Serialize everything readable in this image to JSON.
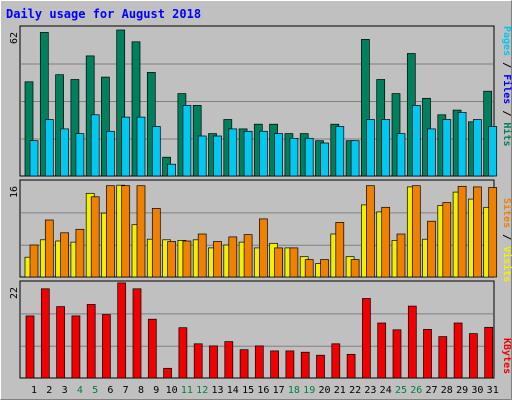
{
  "chart_data": [
    {
      "type": "bar",
      "title": "Daily usage for August 2018",
      "panel": "top",
      "ymax_label": "62",
      "ylim": [
        0,
        62
      ],
      "categories": [
        "1",
        "2",
        "3",
        "4",
        "5",
        "6",
        "7",
        "8",
        "9",
        "10",
        "11",
        "12",
        "13",
        "14",
        "15",
        "16",
        "17",
        "18",
        "19",
        "20",
        "21",
        "22",
        "23",
        "24",
        "25",
        "26",
        "27",
        "28",
        "29",
        "30",
        "31"
      ],
      "weekend_days": [
        "4",
        "5",
        "11",
        "12",
        "18",
        "19",
        "25",
        "26"
      ],
      "right_label": {
        "parts": [
          "Pages",
          "/",
          "Files",
          "/",
          "Hits"
        ]
      },
      "series": [
        {
          "name": "Hits",
          "color": "#00805c",
          "values": [
            40,
            61,
            43,
            41,
            51,
            42,
            62,
            57,
            44,
            8,
            35,
            30,
            18,
            24,
            20,
            22,
            22,
            18,
            18,
            15,
            22,
            15,
            58,
            41,
            35,
            52,
            33,
            26,
            28,
            23,
            36
          ]
        },
        {
          "name": "Files",
          "color": "#00c8f0",
          "values": [
            15,
            24,
            20,
            18,
            26,
            19,
            25,
            25,
            21,
            5,
            30,
            17,
            17,
            20,
            19,
            19,
            18,
            16,
            16,
            14,
            21,
            15,
            24,
            24,
            18,
            30,
            20,
            24,
            27,
            24,
            21
          ]
        }
      ]
    },
    {
      "type": "bar",
      "panel": "middle",
      "ymax_label": "16",
      "ylim": [
        0,
        16
      ],
      "right_label": {
        "parts": [
          "Sites",
          "/",
          "Visits"
        ]
      },
      "series": [
        {
          "name": "Visits",
          "color": "#f0f000",
          "values": [
            3.4,
            6.4,
            6.2,
            6.0,
            14.4,
            11.0,
            15.8,
            9.0,
            6.5,
            6.4,
            6.3,
            6.4,
            5.0,
            5.5,
            6.0,
            5.0,
            5.8,
            5.0,
            3.5,
            2.3,
            7.4,
            3.5,
            12.4,
            11.2,
            6.3,
            15.5,
            6.5,
            12.3,
            14.6,
            13.4,
            12.0
          ]
        },
        {
          "name": "Sites",
          "color": "#f08000",
          "values": [
            5.5,
            9.8,
            7.6,
            8.2,
            13.8,
            15.7,
            15.7,
            15.7,
            11.8,
            6.1,
            6.2,
            7.4,
            6.1,
            6.9,
            7.3,
            10.0,
            5.0,
            5.0,
            3.0,
            3.0,
            9.4,
            3.0,
            15.7,
            12.0,
            7.4,
            15.7,
            9.6,
            12.8,
            15.6,
            15.5,
            15.4
          ]
        }
      ]
    },
    {
      "type": "bar",
      "panel": "bottom",
      "ymax_label": "22",
      "ylim": [
        0,
        22
      ],
      "right_label": {
        "parts": [
          "KBytes"
        ]
      },
      "series": [
        {
          "name": "KBytes",
          "color": "#f00000",
          "values": [
            14.7,
            21.1,
            16.9,
            14.7,
            17.4,
            15.0,
            22.5,
            21.1,
            13.9,
            2.3,
            11.9,
            8.1,
            7.6,
            8.6,
            6.7,
            7.6,
            6.4,
            6.4,
            6.1,
            5.4,
            8.1,
            5.6,
            18.8,
            13.0,
            11.4,
            17.0,
            11.5,
            9.8,
            13.0,
            10.5,
            12.0
          ]
        }
      ]
    }
  ],
  "colors": {
    "background": "#ffffff",
    "panel_bg": "#c0c0c0",
    "title": "#0000ff",
    "weekday_label": "#000000",
    "weekend_label": "#008040",
    "separator": "#ffffff",
    "grid": "#808080"
  }
}
